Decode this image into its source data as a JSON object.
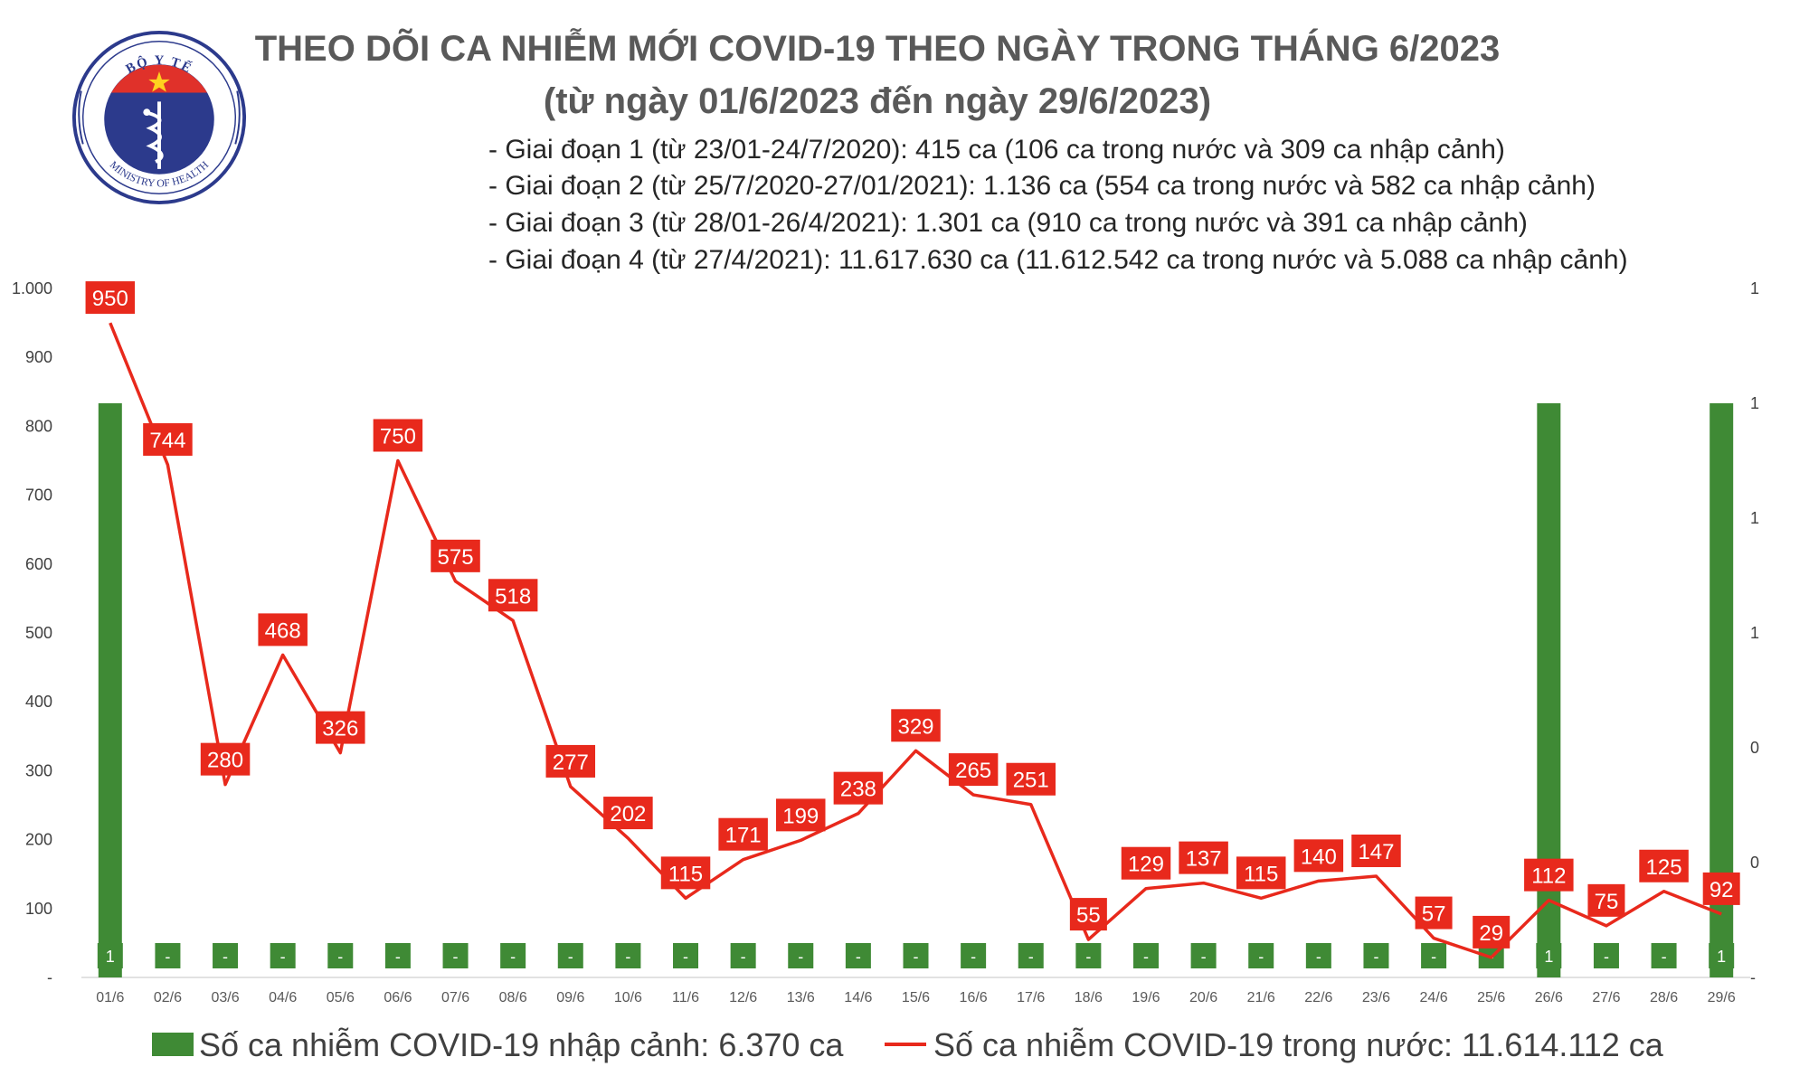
{
  "header": {
    "logo": {
      "top_text": "BỘ Y TẾ",
      "bottom_text": "MINISTRY OF HEALTH"
    },
    "title": "THEO DÕI CA NHIỄM MỚI COVID-19 THEO NGÀY TRONG THÁNG 6/2023",
    "subtitle": "(từ ngày 01/6/2023 đến ngày 29/6/2023)",
    "stages": [
      "- Giai đoạn 1 (từ 23/01-24/7/2020): 415 ca (106 ca trong nước và 309 ca nhập cảnh)",
      "- Giai đoạn 2 (từ 25/7/2020-27/01/2021): 1.136 ca (554 ca trong nước và 582 ca nhập cảnh)",
      "- Giai đoạn 3 (từ 28/01-26/4/2021): 1.301 ca (910 ca trong nước và 391 ca nhập cảnh)",
      "- Giai đoạn 4 (từ 27/4/2021): 11.617.630 ca (11.612.542 ca trong nước và 5.088 ca nhập cảnh)"
    ]
  },
  "colors": {
    "bar": "#3f8a35",
    "line": "#e8291c",
    "label_box": "#e8291c",
    "grid": "#d9d9d9"
  },
  "chart_data": {
    "type": "bar+line",
    "categories": [
      "01/6",
      "02/6",
      "03/6",
      "04/6",
      "05/6",
      "06/6",
      "07/6",
      "08/6",
      "09/6",
      "10/6",
      "11/6",
      "12/6",
      "13/6",
      "14/6",
      "15/6",
      "16/6",
      "17/6",
      "18/6",
      "19/6",
      "20/6",
      "21/6",
      "22/6",
      "23/6",
      "24/6",
      "25/6",
      "26/6",
      "27/6",
      "28/6",
      "29/6"
    ],
    "series": [
      {
        "name": "Số ca nhiễm COVID-19 nhập cảnh: 6.370 ca",
        "type": "bar",
        "axis": "right",
        "values": [
          1,
          0,
          0,
          0,
          0,
          0,
          0,
          0,
          0,
          0,
          0,
          0,
          0,
          0,
          0,
          0,
          0,
          0,
          0,
          0,
          0,
          0,
          0,
          0,
          0,
          1,
          0,
          0,
          1
        ],
        "labels": [
          "1",
          "-",
          "-",
          "-",
          "-",
          "-",
          "-",
          "-",
          "-",
          "-",
          "-",
          "-",
          "-",
          "-",
          "-",
          "-",
          "-",
          "-",
          "-",
          "-",
          "-",
          "-",
          "-",
          "-",
          "-",
          "1",
          "-",
          "-",
          "1"
        ]
      },
      {
        "name": "Số ca nhiễm COVID-19 trong nước: 11.614.112 ca",
        "type": "line",
        "axis": "left",
        "values": [
          950,
          744,
          280,
          468,
          326,
          750,
          575,
          518,
          277,
          202,
          115,
          171,
          199,
          238,
          329,
          265,
          251,
          55,
          129,
          137,
          115,
          140,
          147,
          57,
          29,
          112,
          75,
          125,
          92
        ]
      }
    ],
    "y_left": {
      "range": [
        0,
        1000
      ],
      "ticks": [
        0,
        100,
        200,
        300,
        400,
        500,
        600,
        700,
        800,
        900,
        1000
      ],
      "tick_labels": [
        "-",
        "100",
        "200",
        "300",
        "400",
        "500",
        "600",
        "700",
        "800",
        "900",
        "1.000"
      ]
    },
    "y_right": {
      "range": [
        0,
        1.2
      ],
      "ticks": [
        0,
        0.2,
        0.4,
        0.6,
        0.8,
        1.0,
        1.2
      ],
      "tick_labels": [
        "-",
        "0",
        "0",
        "1",
        "1",
        "1",
        "1"
      ]
    },
    "grid": false,
    "legend_position": "bottom"
  }
}
